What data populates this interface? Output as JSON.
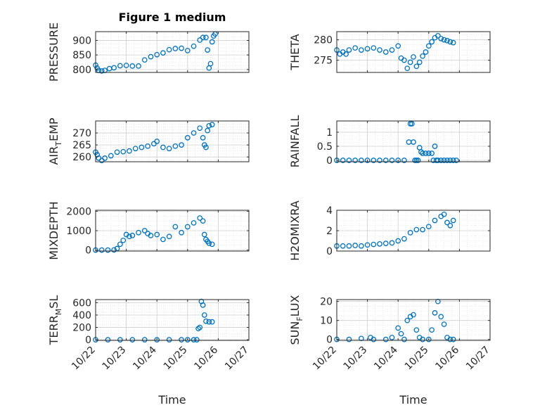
{
  "figure": {
    "title": "Figure 1 medium",
    "xlabel": "Time",
    "marker_color": "#0072BD"
  },
  "chart_data": [
    {
      "type": "scatter",
      "ylabel": "PRESSURE",
      "ylabel_sub": "",
      "ylabel_suffix": "",
      "ylim": [
        790,
        930
      ],
      "yticks": [
        800,
        850,
        900
      ],
      "ytick_labels": [
        "800",
        "850",
        "900"
      ],
      "xlim": [
        0,
        5
      ],
      "xticks": [
        0,
        1,
        2,
        3,
        4,
        5
      ],
      "xtick_labels": [
        "10/22",
        "10/23",
        "10/24",
        "10/25",
        "10/26",
        "10/27"
      ],
      "grid": true,
      "x": [
        0,
        0.05,
        0.1,
        0.2,
        0.3,
        0.45,
        0.6,
        0.8,
        1.0,
        1.2,
        1.4,
        1.6,
        1.8,
        2.0,
        2.2,
        2.4,
        2.6,
        2.8,
        3.0,
        3.2,
        3.4,
        3.5,
        3.6,
        3.65,
        3.7,
        3.75,
        3.8,
        3.85,
        3.9
      ],
      "y": [
        815,
        805,
        797,
        795,
        797,
        803,
        806,
        813,
        814,
        812,
        812,
        833,
        844,
        851,
        857,
        868,
        872,
        873,
        865,
        880,
        901,
        910,
        910,
        867,
        805,
        820,
        895,
        915,
        922
      ]
    },
    {
      "type": "scatter",
      "ylabel": "THETA",
      "ylabel_sub": "",
      "ylabel_suffix": "",
      "ylim": [
        272,
        282
      ],
      "yticks": [
        275,
        280
      ],
      "ytick_labels": [
        "275",
        "280"
      ],
      "xlim": [
        0,
        5
      ],
      "xticks": [
        0,
        1,
        2,
        3,
        4,
        5
      ],
      "xtick_labels": [
        "10/22",
        "10/23",
        "10/24",
        "10/25",
        "10/26",
        "10/27"
      ],
      "grid": true,
      "x": [
        0,
        0.1,
        0.2,
        0.3,
        0.4,
        0.6,
        0.8,
        1.0,
        1.2,
        1.4,
        1.6,
        1.8,
        2.0,
        2.1,
        2.2,
        2.3,
        2.4,
        2.5,
        2.6,
        2.7,
        2.8,
        2.9,
        3.0,
        3.1,
        3.2,
        3.3,
        3.4,
        3.5,
        3.6,
        3.7,
        3.8
      ],
      "y": [
        277.5,
        276.5,
        277,
        276.5,
        277.5,
        278,
        277.5,
        277.8,
        278,
        277.5,
        277,
        277.5,
        278.5,
        275.5,
        275,
        273,
        274.5,
        275.8,
        273.5,
        274.5,
        276,
        277,
        278.5,
        279.5,
        280.5,
        281,
        280.3,
        280,
        279.8,
        279.5,
        279.3
      ]
    },
    {
      "type": "scatter",
      "ylabel": "AIR",
      "ylabel_sub": "T",
      "ylabel_suffix": "EMP",
      "ylim": [
        258,
        275
      ],
      "yticks": [
        260,
        265,
        270
      ],
      "ytick_labels": [
        "260",
        "265",
        "270"
      ],
      "xlim": [
        0,
        5
      ],
      "xticks": [
        0,
        1,
        2,
        3,
        4,
        5
      ],
      "xtick_labels": [
        "10/22",
        "10/23",
        "10/24",
        "10/25",
        "10/26",
        "10/27"
      ],
      "grid": true,
      "x": [
        0,
        0.05,
        0.1,
        0.2,
        0.3,
        0.5,
        0.7,
        0.9,
        1.1,
        1.3,
        1.5,
        1.7,
        1.9,
        2.0,
        2.2,
        2.4,
        2.6,
        2.8,
        3.0,
        3.2,
        3.4,
        3.5,
        3.55,
        3.6,
        3.65,
        3.7,
        3.8
      ],
      "y": [
        262,
        261,
        259.5,
        258.5,
        259.5,
        260.5,
        262,
        262.2,
        262.5,
        263.5,
        264,
        264.5,
        265.5,
        266.5,
        264,
        263.5,
        264.5,
        265,
        268,
        270,
        272,
        268,
        265,
        264,
        271,
        273,
        273.5
      ]
    },
    {
      "type": "scatter",
      "ylabel": "RAINFALL",
      "ylabel_sub": "",
      "ylabel_suffix": "",
      "ylim": [
        -0.05,
        1.4
      ],
      "yticks": [
        0,
        0.5,
        1
      ],
      "ytick_labels": [
        "0",
        "0.5",
        "1"
      ],
      "xlim": [
        0,
        5
      ],
      "xticks": [
        0,
        1,
        2,
        3,
        4,
        5
      ],
      "xtick_labels": [
        "10/22",
        "10/23",
        "10/24",
        "10/25",
        "10/26",
        "10/27"
      ],
      "grid": true,
      "x": [
        0,
        0.2,
        0.4,
        0.6,
        0.8,
        1.0,
        1.2,
        1.4,
        1.6,
        1.8,
        2.0,
        2.2,
        2.35,
        2.4,
        2.45,
        2.5,
        2.55,
        2.6,
        2.65,
        2.7,
        2.75,
        2.8,
        2.9,
        3.0,
        3.1,
        3.15,
        3.2,
        3.25,
        3.3,
        3.4,
        3.5,
        3.6,
        3.7,
        3.8,
        3.9
      ],
      "y": [
        0,
        0,
        0,
        0,
        0,
        0,
        0,
        0,
        0,
        0,
        0,
        0,
        0.65,
        1.3,
        1.3,
        0.65,
        0,
        0,
        0,
        0.45,
        0.3,
        0.25,
        0.25,
        0.25,
        0.25,
        0,
        0.5,
        0,
        0,
        0,
        0,
        0,
        0,
        0,
        0
      ]
    },
    {
      "type": "scatter",
      "ylabel": "MIXDEPTH",
      "ylabel_sub": "",
      "ylabel_suffix": "",
      "ylim": [
        -50,
        2050
      ],
      "yticks": [
        0,
        1000,
        2000
      ],
      "ytick_labels": [
        "0",
        "1000",
        "2000"
      ],
      "xlim": [
        0,
        5
      ],
      "xticks": [
        0,
        1,
        2,
        3,
        4,
        5
      ],
      "xtick_labels": [
        "10/22",
        "10/23",
        "10/24",
        "10/25",
        "10/26",
        "10/27"
      ],
      "grid": true,
      "x": [
        0,
        0.2,
        0.4,
        0.6,
        0.7,
        0.8,
        0.9,
        1.0,
        1.1,
        1.2,
        1.4,
        1.6,
        1.7,
        1.8,
        2.0,
        2.2,
        2.4,
        2.6,
        2.8,
        3.0,
        3.2,
        3.4,
        3.5,
        3.55,
        3.6,
        3.65,
        3.7,
        3.8
      ],
      "y": [
        0,
        0,
        0,
        10,
        80,
        300,
        500,
        800,
        700,
        750,
        900,
        1000,
        850,
        750,
        800,
        550,
        700,
        1200,
        900,
        1200,
        1400,
        1650,
        1500,
        800,
        550,
        450,
        350,
        300
      ]
    },
    {
      "type": "scatter",
      "ylabel": "H2OMIXRA",
      "ylabel_sub": "",
      "ylabel_suffix": "",
      "ylim": [
        0,
        4
      ],
      "yticks": [
        0,
        2,
        4
      ],
      "ytick_labels": [
        "0",
        "2",
        "4"
      ],
      "xlim": [
        0,
        5
      ],
      "xticks": [
        0,
        1,
        2,
        3,
        4,
        5
      ],
      "xtick_labels": [
        "10/22",
        "10/23",
        "10/24",
        "10/25",
        "10/26",
        "10/27"
      ],
      "grid": true,
      "x": [
        0,
        0.2,
        0.4,
        0.6,
        0.8,
        1.0,
        1.2,
        1.4,
        1.6,
        1.8,
        2.0,
        2.2,
        2.4,
        2.6,
        2.8,
        3.0,
        3.2,
        3.4,
        3.5,
        3.6,
        3.7,
        3.8
      ],
      "y": [
        0.5,
        0.5,
        0.5,
        0.55,
        0.5,
        0.6,
        0.65,
        0.7,
        0.75,
        0.8,
        1.0,
        1.2,
        1.8,
        2.1,
        2.1,
        2.4,
        3.0,
        3.4,
        3.6,
        2.8,
        2.5,
        3.0
      ]
    },
    {
      "type": "scatter",
      "ylabel": "TERR",
      "ylabel_sub": "M",
      "ylabel_suffix": "SL",
      "ylim": [
        -10,
        650
      ],
      "yticks": [
        0,
        200,
        400,
        600
      ],
      "ytick_labels": [
        "0",
        "200",
        "400",
        "600"
      ],
      "xlim": [
        0,
        5
      ],
      "xticks": [
        0,
        1,
        2,
        3,
        4,
        5
      ],
      "xtick_labels": [
        "10/22",
        "10/23",
        "10/24",
        "10/25",
        "10/26",
        "10/27"
      ],
      "grid": true,
      "x": [
        0,
        0.4,
        0.8,
        1.2,
        1.6,
        2.0,
        2.4,
        2.8,
        3.0,
        3.2,
        3.3,
        3.35,
        3.4,
        3.45,
        3.5,
        3.55,
        3.6,
        3.7,
        3.8
      ],
      "y": [
        0,
        0,
        0,
        0,
        0,
        0,
        0,
        0,
        0,
        0,
        0,
        180,
        200,
        620,
        560,
        400,
        300,
        290,
        290
      ]
    },
    {
      "type": "scatter",
      "ylabel": "SUN",
      "ylabel_sub": "F",
      "ylabel_suffix": "LUX",
      "ylim": [
        -0.5,
        21
      ],
      "yticks": [
        0,
        10,
        20
      ],
      "ytick_labels": [
        "0",
        "10",
        "20"
      ],
      "xlim": [
        0,
        5
      ],
      "xticks": [
        0,
        1,
        2,
        3,
        4,
        5
      ],
      "xtick_labels": [
        "10/22",
        "10/23",
        "10/24",
        "10/25",
        "10/26",
        "10/27"
      ],
      "grid": true,
      "x": [
        0,
        0.4,
        0.8,
        1.1,
        1.2,
        1.6,
        1.8,
        2.0,
        2.1,
        2.2,
        2.3,
        2.4,
        2.5,
        2.6,
        2.7,
        2.8,
        3.0,
        3.1,
        3.2,
        3.3,
        3.4,
        3.5,
        3.6,
        3.7,
        3.8
      ],
      "y": [
        0,
        0,
        0.5,
        1,
        0,
        0,
        1,
        6,
        3,
        0,
        10,
        12,
        13,
        5,
        1,
        0,
        0,
        5,
        14,
        20,
        12,
        8,
        1,
        0,
        0
      ]
    }
  ]
}
